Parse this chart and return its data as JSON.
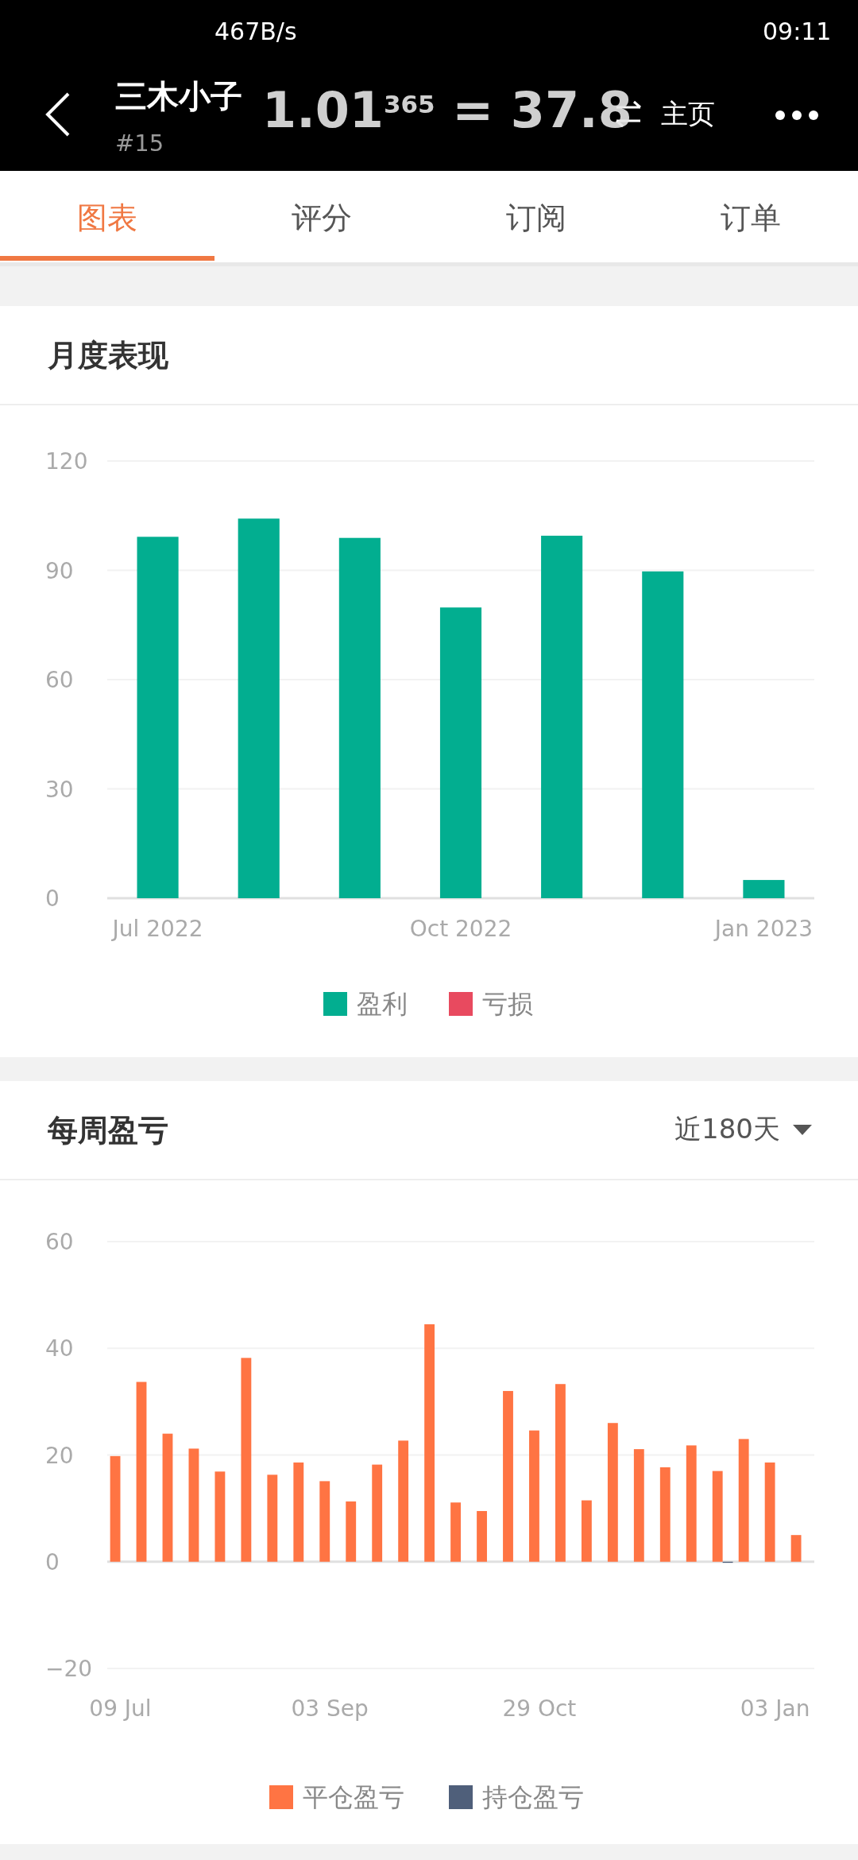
{
  "chart_data": [
    {
      "type": "other",
      "annotations": [
        "467B/s",
        "09:11",
        "三木小子",
        "#15",
        "1.01$^{365}$ = 37.8",
        "主页",
        "图表",
        "评分",
        "订阅",
        "订单"
      ]
    },
    {
      "type": "bar",
      "title": "月度表现",
      "stacked": true,
      "categories": [
        "Jul 2022",
        null,
        null,
        "Oct 2022",
        null,
        null,
        "Jan 2023"
      ],
      "series": [
        {
          "name": "盈利",
          "color": "#02ae90",
          "values": [
            99.2,
            104.2,
            98.9,
            79.8,
            99.5,
            89.7,
            5.0
          ]
        },
        {
          "name": "亏损",
          "color": "#e84a5f",
          "values": [
            null,
            null,
            null,
            null,
            null,
            null,
            null
          ]
        }
      ],
      "ylim": [
        0,
        120
      ],
      "yticks": [
        0,
        30,
        60,
        90,
        120
      ],
      "grid": "y",
      "legend": "bottom"
    },
    {
      "type": "bar",
      "title": "每周盈亏",
      "subtitle": "近180天",
      "categories": [
        "09 Jul",
        null,
        null,
        null,
        null,
        null,
        null,
        null,
        "03 Sep",
        null,
        null,
        null,
        null,
        null,
        null,
        null,
        "29 Oct",
        null,
        null,
        null,
        null,
        null,
        null,
        null,
        null,
        "03 Jan",
        null
      ],
      "series": [
        {
          "name": "平仓盈亏",
          "color": "#ff7443",
          "values": [
            19.8,
            33.7,
            24.0,
            21.2,
            16.9,
            38.2,
            16.3,
            18.6,
            15.1,
            11.3,
            18.2,
            22.7,
            44.5,
            11.1,
            9.5,
            32.0,
            24.6,
            33.3,
            11.5,
            26.0,
            21.1,
            17.7,
            21.8,
            17.0,
            23.0,
            18.6,
            5.0
          ]
        },
        {
          "name": "持仓盈亏",
          "color": "#4f5f7a",
          "values": [
            null,
            null,
            null,
            null,
            null,
            null,
            null,
            null,
            null,
            null,
            null,
            null,
            null,
            null,
            null,
            null,
            null,
            null,
            null,
            null,
            null,
            null,
            null,
            -0.2,
            null,
            null,
            null
          ]
        }
      ],
      "ylim": [
        -20,
        60
      ],
      "yticks": [
        -20,
        0,
        20,
        40,
        60
      ],
      "grid": "y",
      "legend": "bottom"
    }
  ]
}
